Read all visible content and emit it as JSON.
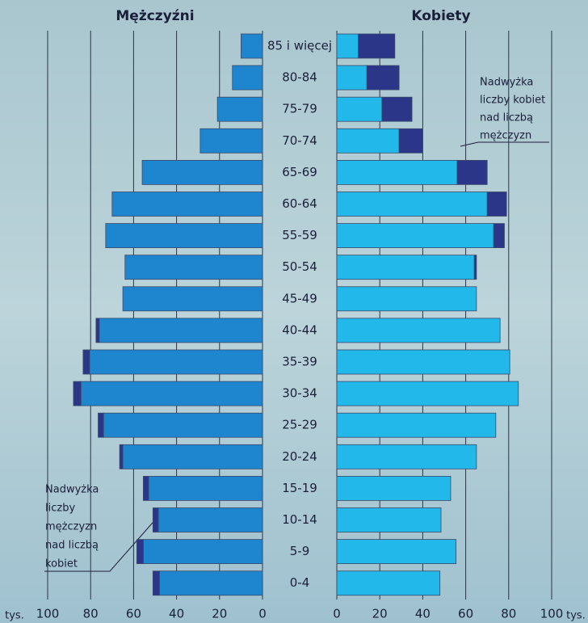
{
  "chart_data": {
    "type": "pyramid",
    "left_title": "Mężczyźni",
    "right_title": "Kobiety",
    "x_unit": "tys.",
    "categories": [
      "85 i więcej",
      "80-84",
      "75-79",
      "70-74",
      "65-69",
      "60-64",
      "55-59",
      "50-54",
      "45-49",
      "40-44",
      "35-39",
      "30-34",
      "25-29",
      "20-24",
      "15-19",
      "10-14",
      "5-9",
      "0-4"
    ],
    "left_series": [
      {
        "color": "#1e86cf",
        "values": [
          10,
          14,
          21,
          29,
          56,
          70,
          73,
          64,
          65,
          76,
          80.5,
          84.5,
          74,
          65,
          53,
          48.5,
          55.5,
          48
        ]
      },
      {
        "color": "#2b3689",
        "values": [
          null,
          null,
          null,
          null,
          null,
          null,
          null,
          null,
          null,
          1.5,
          3,
          3.5,
          2.5,
          1.5,
          2.5,
          2.5,
          3,
          3
        ]
      }
    ],
    "right_series": [
      {
        "color": "#22b9ea",
        "values": [
          10,
          14,
          21,
          29,
          56,
          70,
          73,
          64,
          65,
          76,
          80.5,
          84.5,
          74,
          65,
          53,
          48.5,
          55.5,
          48
        ]
      },
      {
        "color": "#2b3689",
        "values": [
          17,
          15,
          14,
          11,
          14,
          9,
          5,
          1,
          null,
          null,
          null,
          null,
          null,
          null,
          null,
          null,
          null,
          null
        ]
      }
    ],
    "annotation_right": [
      "Nadwyżka",
      "liczby kobiet",
      "nad liczbą",
      "mężczyzn"
    ],
    "annotation_left": [
      "Nadwyżka",
      "liczby",
      "mężczyzn",
      "nad liczbą",
      "kobiet"
    ],
    "xlim": [
      0,
      100
    ],
    "xticks": [
      0,
      20,
      40,
      60,
      80,
      100
    ],
    "grid": true
  }
}
